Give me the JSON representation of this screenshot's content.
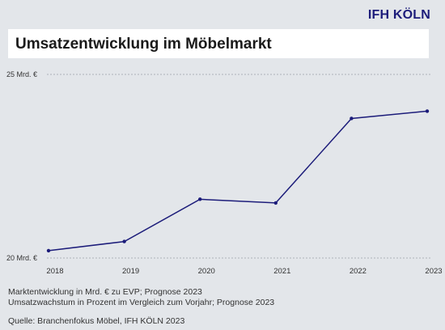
{
  "brand": "IFH KÖLN",
  "header": {
    "title": "Umsatzentwicklung im Möbelmarkt"
  },
  "chart_data": {
    "type": "line",
    "categories": [
      "2018",
      "2019",
      "2020",
      "2021",
      "2022",
      "2023"
    ],
    "values": [
      20.2,
      20.45,
      21.6,
      21.5,
      23.8,
      24.0
    ],
    "ylim": [
      20,
      25
    ],
    "yticks": [
      {
        "value": 20,
        "label": "20 Mrd. €"
      },
      {
        "value": 25,
        "label": "25 Mrd. €"
      }
    ],
    "grid": true,
    "line_color": "#1c1c7a"
  },
  "notes": [
    "Marktentwicklung in Mrd. € zu EVP; Prognose 2023",
    "Umsatzwachstum in Prozent im Vergleich zum Vorjahr; Prognose 2023"
  ],
  "source": "Quelle:  Branchenfokus Möbel, IFH KÖLN 2023"
}
